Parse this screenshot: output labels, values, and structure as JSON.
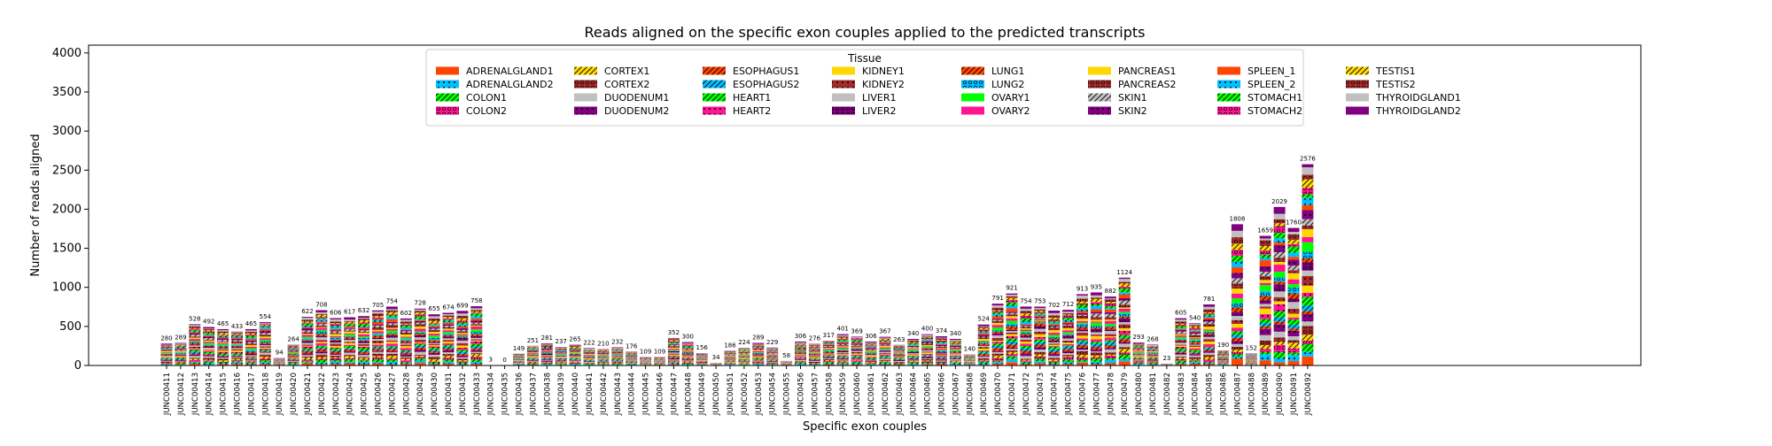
{
  "chart_data": {
    "type": "bar",
    "stacked": true,
    "title": "Reads aligned on the specific exon couples applied to the predicted transcripts",
    "xlabel": "Specific exon couples",
    "ylabel": "Number of reads aligned",
    "ylim": [
      0,
      4100
    ],
    "yticks": [
      0,
      500,
      1000,
      1500,
      2000,
      2500,
      3000,
      3500,
      4000
    ],
    "legend": {
      "title": "Tissue",
      "placement": "top-center",
      "columns": 8,
      "entries": [
        "ADRENALGLAND1",
        "ADRENALGLAND2",
        "COLON1",
        "COLON2",
        "CORTEX1",
        "CORTEX2",
        "DUODENUM1",
        "DUODENUM2",
        "ESOPHAGUS1",
        "ESOPHAGUS2",
        "HEART1",
        "HEART2",
        "KIDNEY1",
        "KIDNEY2",
        "LIVER1",
        "LIVER2",
        "LUNG1",
        "LUNG2",
        "OVARY1",
        "OVARY2",
        "PANCREAS1",
        "PANCREAS2",
        "SKIN1",
        "SKIN2",
        "SPLEEN_1",
        "SPLEEN_2",
        "STOMACH1",
        "STOMACH2",
        "TESTIS1",
        "TESTIS2",
        "THYROIDGLAND1",
        "THYROIDGLAND2"
      ]
    },
    "series_styles": [
      {
        "name": "ADRENALGLAND1",
        "color": "#ff4500",
        "hatch": "none"
      },
      {
        "name": "ADRENALGLAND2",
        "color": "#00bfff",
        "hatch": "dots"
      },
      {
        "name": "COLON1",
        "color": "#00ff00",
        "hatch": "slash"
      },
      {
        "name": "COLON2",
        "color": "#ff1493",
        "hatch": "circles"
      },
      {
        "name": "CORTEX1",
        "color": "#ffd700",
        "hatch": "slash"
      },
      {
        "name": "CORTEX2",
        "color": "#a52a2a",
        "hatch": "circles"
      },
      {
        "name": "DUODENUM1",
        "color": "#c0c0c0",
        "hatch": "none"
      },
      {
        "name": "DUODENUM2",
        "color": "#800080",
        "hatch": "dots"
      },
      {
        "name": "ESOPHAGUS1",
        "color": "#ff4500",
        "hatch": "slash"
      },
      {
        "name": "ESOPHAGUS2",
        "color": "#00bfff",
        "hatch": "slash"
      },
      {
        "name": "HEART1",
        "color": "#00ff00",
        "hatch": "slash"
      },
      {
        "name": "HEART2",
        "color": "#ff1493",
        "hatch": "dots"
      },
      {
        "name": "KIDNEY1",
        "color": "#ffd700",
        "hatch": "none"
      },
      {
        "name": "KIDNEY2",
        "color": "#a52a2a",
        "hatch": "dots"
      },
      {
        "name": "LIVER1",
        "color": "#c0c0c0",
        "hatch": "none"
      },
      {
        "name": "LIVER2",
        "color": "#800080",
        "hatch": "circles"
      },
      {
        "name": "LUNG1",
        "color": "#ff4500",
        "hatch": "slash"
      },
      {
        "name": "LUNG2",
        "color": "#00bfff",
        "hatch": "circles"
      },
      {
        "name": "OVARY1",
        "color": "#00ff00",
        "hatch": "none"
      },
      {
        "name": "OVARY2",
        "color": "#ff1493",
        "hatch": "none"
      },
      {
        "name": "PANCREAS1",
        "color": "#ffd700",
        "hatch": "none"
      },
      {
        "name": "PANCREAS2",
        "color": "#a52a2a",
        "hatch": "circles"
      },
      {
        "name": "SKIN1",
        "color": "#c0c0c0",
        "hatch": "slash"
      },
      {
        "name": "SKIN2",
        "color": "#800080",
        "hatch": "dots"
      },
      {
        "name": "SPLEEN_1",
        "color": "#ff4500",
        "hatch": "none"
      },
      {
        "name": "SPLEEN_2",
        "color": "#00bfff",
        "hatch": "dots"
      },
      {
        "name": "STOMACH1",
        "color": "#00ff00",
        "hatch": "slash"
      },
      {
        "name": "STOMACH2",
        "color": "#ff1493",
        "hatch": "circles"
      },
      {
        "name": "TESTIS1",
        "color": "#ffd700",
        "hatch": "slash"
      },
      {
        "name": "TESTIS2",
        "color": "#a52a2a",
        "hatch": "circles"
      },
      {
        "name": "THYROIDGLAND1",
        "color": "#c0c0c0",
        "hatch": "none"
      },
      {
        "name": "THYROIDGLAND2",
        "color": "#800080",
        "hatch": "none"
      }
    ],
    "categories": [
      "JUNC00411",
      "JUNC00412",
      "JUNC00413",
      "JUNC00414",
      "JUNC00415",
      "JUNC00416",
      "JUNC00417",
      "JUNC00418",
      "JUNC00419",
      "JUNC00420",
      "JUNC00421",
      "JUNC00422",
      "JUNC00423",
      "JUNC00424",
      "JUNC00425",
      "JUNC00426",
      "JUNC00427",
      "JUNC00428",
      "JUNC00429",
      "JUNC00430",
      "JUNC00431",
      "JUNC00432",
      "JUNC00433",
      "JUNC00434",
      "JUNC00435",
      "JUNC00436",
      "JUNC00437",
      "JUNC00438",
      "JUNC00439",
      "JUNC00440",
      "JUNC00441",
      "JUNC00442",
      "JUNC00443",
      "JUNC00444",
      "JUNC00445",
      "JUNC00446",
      "JUNC00447",
      "JUNC00448",
      "JUNC00449",
      "JUNC00450",
      "JUNC00451",
      "JUNC00452",
      "JUNC00453",
      "JUNC00454",
      "JUNC00455",
      "JUNC00456",
      "JUNC00457",
      "JUNC00458",
      "JUNC00459",
      "JUNC00460",
      "JUNC00461",
      "JUNC00462",
      "JUNC00463",
      "JUNC00464",
      "JUNC00465",
      "JUNC00466",
      "JUNC00467",
      "JUNC00468",
      "JUNC00469",
      "JUNC00470",
      "JUNC00471",
      "JUNC00472",
      "JUNC00473",
      "JUNC00474",
      "JUNC00475",
      "JUNC00476",
      "JUNC00477",
      "JUNC00478",
      "JUNC00479",
      "JUNC00480",
      "JUNC00481",
      "JUNC00482",
      "JUNC00483",
      "JUNC00484",
      "JUNC00485",
      "JUNC00486",
      "JUNC00487",
      "JUNC00488",
      "JUNC00489",
      "JUNC00490",
      "JUNC00491",
      "JUNC00492"
    ],
    "totals": [
      280,
      289,
      528,
      492,
      465,
      433,
      465,
      554,
      94,
      264,
      622,
      708,
      606,
      617,
      632,
      705,
      754,
      602,
      728,
      655,
      674,
      699,
      758,
      3,
      0,
      149,
      251,
      281,
      237,
      265,
      222,
      210,
      232,
      176,
      109,
      109,
      352,
      300,
      156,
      34,
      186,
      224,
      289,
      229,
      58,
      306,
      276,
      317,
      401,
      369,
      306,
      367,
      263,
      340,
      400,
      374,
      340,
      140,
      524,
      791,
      921,
      754,
      753,
      702,
      712,
      913,
      935,
      882,
      1124,
      293,
      268,
      23,
      605,
      540,
      781,
      190,
      1808,
      152,
      1659,
      2029,
      1760,
      2576
    ]
  }
}
